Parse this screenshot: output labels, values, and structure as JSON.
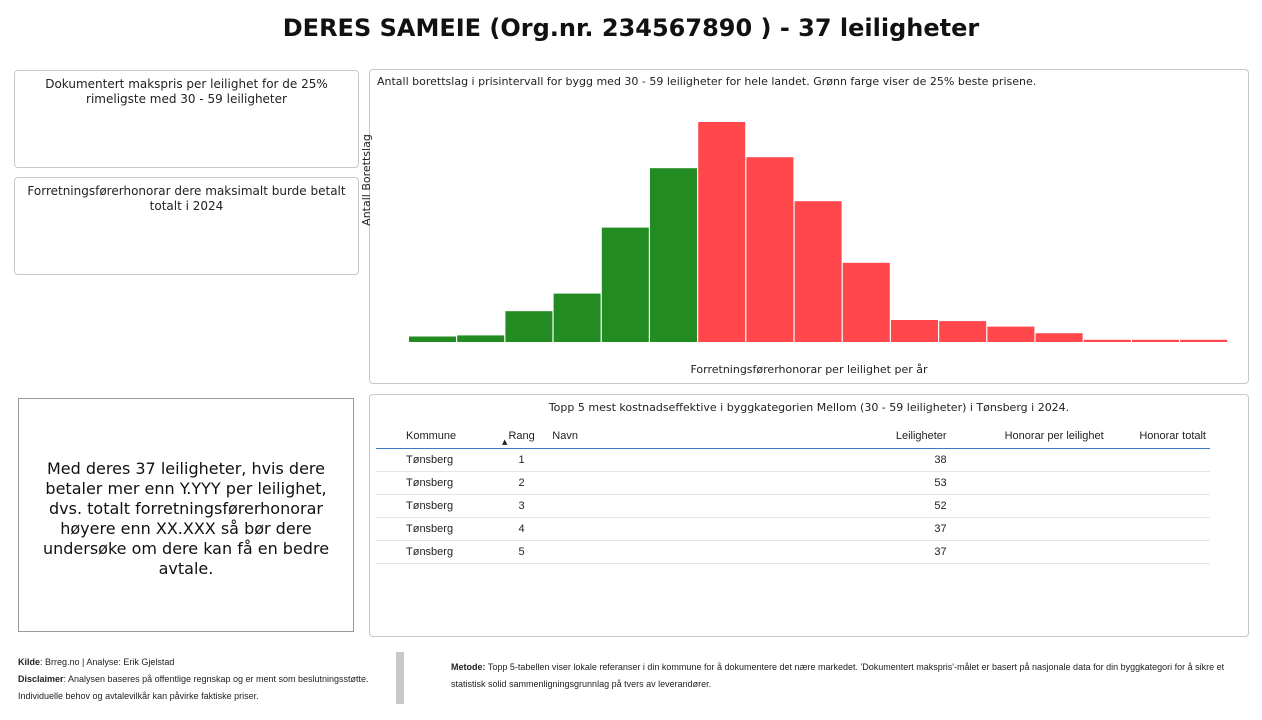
{
  "header": {
    "title": "DERES SAMEIE (Org.nr. 234567890 ) - 37 leiligheter"
  },
  "kpi_cards": {
    "makspris_label": "Dokumentert makspris per leilighet for de 25% rimeligste med 30 - 59 leiligheter",
    "honorar_label": "Forretningsførerhonorar dere maksimalt burde betalt totalt i 2024"
  },
  "chart": {
    "title": "Antall borettslag i prisintervall for bygg med 30 - 59 leiligheter for hele landet. Grønn farge viser de 25% beste prisene.",
    "ylabel": "Antall Borettslag",
    "xlabel": "Forretningsførerhonorar per leilighet per år"
  },
  "chart_data": {
    "type": "bar",
    "title": "Antall borettslag i prisintervall for bygg med 30 - 59 leiligheter for hele landet. Grønn farge viser de 25% beste prisene.",
    "xlabel": "Forretningsførerhonorar per leilighet per år",
    "ylabel": "Antall Borettslag",
    "values": [
      2.5,
      3,
      14,
      22,
      52,
      79,
      100,
      84,
      64,
      36,
      10,
      9.5,
      7,
      4,
      1,
      1,
      1
    ],
    "colors": [
      "green",
      "green",
      "green",
      "green",
      "green",
      "green",
      "red",
      "red",
      "red",
      "red",
      "red",
      "red",
      "red",
      "red",
      "red",
      "red",
      "red"
    ],
    "green_color": "#228b22",
    "red_color": "#ff474c",
    "ylim": [
      0,
      100
    ],
    "grid": false,
    "legend": "none"
  },
  "info_box": {
    "text": "Med deres 37 leiligheter, hvis dere betaler mer enn Y.YYY per leilighet, dvs. totalt forretningsførerhonorar høyere enn XX.XXX så bør dere undersøke om dere kan få en bedre avtale."
  },
  "table": {
    "title": "Topp 5 mest kostnadseffektive i byggkategorien Mellom (30 - 59 leiligheter) i Tønsberg i 2024.",
    "headers": {
      "kommune": "Kommune",
      "rang": "Rang",
      "navn": "Navn",
      "leiligheter": "Leiligheter",
      "honorar_per": "Honorar per leilighet",
      "honorar_totalt": "Honorar totalt"
    },
    "sort_icon": "sort-ascending-icon",
    "rows": [
      {
        "kommune": "Tønsberg",
        "rang": "1",
        "navn": "",
        "leiligheter": "38",
        "honorar_per": "",
        "honorar_totalt": ""
      },
      {
        "kommune": "Tønsberg",
        "rang": "2",
        "navn": "",
        "leiligheter": "53",
        "honorar_per": "",
        "honorar_totalt": ""
      },
      {
        "kommune": "Tønsberg",
        "rang": "3",
        "navn": "",
        "leiligheter": "52",
        "honorar_per": "",
        "honorar_totalt": ""
      },
      {
        "kommune": "Tønsberg",
        "rang": "4",
        "navn": "",
        "leiligheter": "37",
        "honorar_per": "",
        "honorar_totalt": ""
      },
      {
        "kommune": "Tønsberg",
        "rang": "5",
        "navn": "",
        "leiligheter": "37",
        "honorar_per": "",
        "honorar_totalt": ""
      }
    ]
  },
  "footer": {
    "kilde_label": "Kilde",
    "kilde_text": ": Brreg.no | Analyse: Erik Gjelstad",
    "disclaimer_label": "Disclaimer",
    "disclaimer_text": ": Analysen baseres på offentlige regnskap og er ment som beslutningsstøtte. Individuelle behov og avtalevilkår kan påvirke faktiske priser.",
    "metode_label": "Metode:",
    "metode_text": " Topp 5-tabellen viser lokale referanser i din kommune for å dokumentere det nære markedet. 'Dokumentert makspris'-målet er basert på nasjonale data for din byggkategori for å sikre et statistisk solid sammenligningsgrunnlag på tvers av leverandører."
  }
}
